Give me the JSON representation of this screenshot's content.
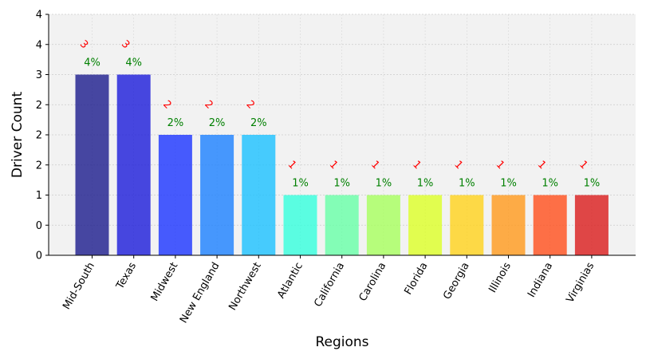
{
  "chart_data": {
    "type": "bar",
    "xlabel": "Regions",
    "ylabel": "Driver Count",
    "ylim": [
      0,
      4
    ],
    "y_tick_values": [
      0,
      0.5,
      1,
      1.5,
      2,
      2.5,
      3,
      3.5,
      4
    ],
    "y_tick_labels": [
      "0",
      "0",
      "1",
      "2",
      "2",
      "2",
      "3",
      "4",
      "4"
    ],
    "grid": true,
    "categories": [
      "Mid-South",
      "Texas",
      "Midwest",
      "New England",
      "Northwest",
      "Atlantic",
      "California",
      "Carolina",
      "Florida",
      "Georgia",
      "Illinois",
      "Indiana",
      "Virginias"
    ],
    "values": [
      3,
      3,
      2,
      2,
      2,
      1,
      1,
      1,
      1,
      1,
      1,
      1,
      1
    ],
    "value_labels": [
      "3",
      "3",
      "2",
      "2",
      "2",
      "1",
      "1",
      "1",
      "1",
      "1",
      "1",
      "1",
      "1"
    ],
    "percent_labels": [
      "4%",
      "4%",
      "2%",
      "2%",
      "2%",
      "1%",
      "1%",
      "1%",
      "1%",
      "1%",
      "1%",
      "1%",
      "1%"
    ],
    "colors": [
      "#1a1a8c",
      "#1a1ad9",
      "#1a33ff",
      "#1a80ff",
      "#1ac0ff",
      "#33ffdc",
      "#66ffa6",
      "#a6ff5c",
      "#dcff26",
      "#ffd21a",
      "#ff991a",
      "#ff4d1a",
      "#d91a1a"
    ],
    "bar_opacity": 0.8,
    "plot_background": "#f2f2f2",
    "value_label_color": "#ff0000",
    "percent_label_color": "#008000"
  }
}
